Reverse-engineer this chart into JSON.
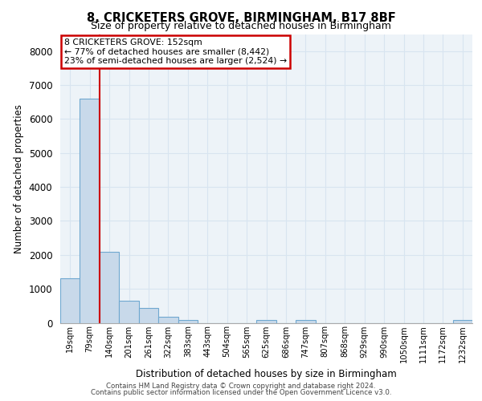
{
  "title_line1": "8, CRICKETERS GROVE, BIRMINGHAM, B17 8BF",
  "title_line2": "Size of property relative to detached houses in Birmingham",
  "xlabel": "Distribution of detached houses by size in Birmingham",
  "ylabel": "Number of detached properties",
  "categories": [
    "19sqm",
    "79sqm",
    "140sqm",
    "201sqm",
    "261sqm",
    "322sqm",
    "383sqm",
    "443sqm",
    "504sqm",
    "565sqm",
    "625sqm",
    "686sqm",
    "747sqm",
    "807sqm",
    "868sqm",
    "929sqm",
    "990sqm",
    "1050sqm",
    "1111sqm",
    "1172sqm",
    "1232sqm"
  ],
  "values": [
    1300,
    6600,
    2100,
    650,
    430,
    180,
    90,
    0,
    0,
    0,
    90,
    0,
    90,
    0,
    0,
    0,
    0,
    0,
    0,
    0,
    90
  ],
  "bar_color": "#c8d9ea",
  "bar_edge_color": "#6fa8d0",
  "property_line_index": 2,
  "annotation_title": "8 CRICKETERS GROVE: 152sqm",
  "annotation_line2": "← 77% of detached houses are smaller (8,442)",
  "annotation_line3": "23% of semi-detached houses are larger (2,524) →",
  "annotation_box_color": "#cc0000",
  "ylim": [
    0,
    8500
  ],
  "yticks": [
    0,
    1000,
    2000,
    3000,
    4000,
    5000,
    6000,
    7000,
    8000
  ],
  "grid_color": "#d8e4f0",
  "background_color": "#edf3f8",
  "footer_line1": "Contains HM Land Registry data © Crown copyright and database right 2024.",
  "footer_line2": "Contains public sector information licensed under the Open Government Licence v3.0."
}
